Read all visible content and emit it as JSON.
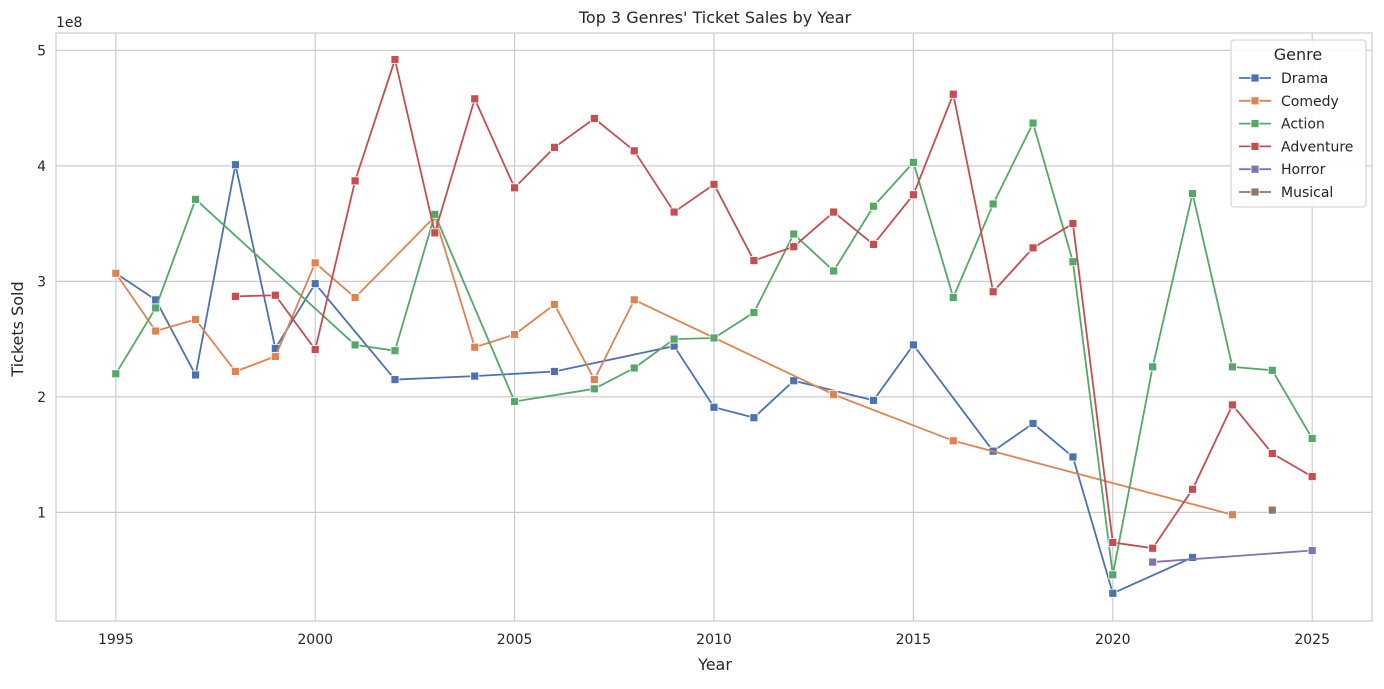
{
  "chart_data": {
    "type": "line",
    "title": "Top 3 Genres' Ticket Sales by Year",
    "xlabel": "Year",
    "ylabel": "Tickets Sold",
    "y_offset_label": "1e8",
    "xlim": [
      1993.5,
      2026.5
    ],
    "ylim": [
      6000000,
      515000000
    ],
    "x_ticks": [
      1995,
      2000,
      2005,
      2010,
      2015,
      2020,
      2025
    ],
    "y_ticks": [
      {
        "value": 100000000,
        "label": "1"
      },
      {
        "value": 200000000,
        "label": "2"
      },
      {
        "value": 300000000,
        "label": "3"
      },
      {
        "value": 400000000,
        "label": "4"
      },
      {
        "value": 500000000,
        "label": "5"
      }
    ],
    "grid": true,
    "legend_title": "Genre",
    "legend_position": "top-right",
    "series": [
      {
        "name": "Drama",
        "color": "#4c72b0",
        "points": [
          [
            1995,
            307000000
          ],
          [
            1996,
            284000000
          ],
          [
            1997,
            219000000
          ],
          [
            1998,
            401000000
          ],
          [
            1999,
            242000000
          ],
          [
            2000,
            298000000
          ],
          [
            2002,
            215000000
          ],
          [
            2004,
            218000000
          ],
          [
            2006,
            222000000
          ],
          [
            2009,
            244000000
          ],
          [
            2010,
            191000000
          ],
          [
            2011,
            182000000
          ],
          [
            2012,
            214000000
          ],
          [
            2014,
            197000000
          ],
          [
            2015,
            245000000
          ],
          [
            2017,
            153000000
          ],
          [
            2018,
            177000000
          ],
          [
            2019,
            148000000
          ],
          [
            2020,
            30000000
          ],
          [
            2022,
            61000000
          ]
        ]
      },
      {
        "name": "Comedy",
        "color": "#dd8452",
        "points": [
          [
            1995,
            307000000
          ],
          [
            1996,
            257000000
          ],
          [
            1997,
            267000000
          ],
          [
            1998,
            222000000
          ],
          [
            1999,
            235000000
          ],
          [
            2000,
            316000000
          ],
          [
            2001,
            286000000
          ],
          [
            2003,
            356000000
          ],
          [
            2004,
            243000000
          ],
          [
            2005,
            254000000
          ],
          [
            2006,
            280000000
          ],
          [
            2007,
            215000000
          ],
          [
            2008,
            284000000
          ],
          [
            2013,
            202000000
          ],
          [
            2016,
            162000000
          ],
          [
            2023,
            98000000
          ]
        ]
      },
      {
        "name": "Action",
        "color": "#55a868",
        "points": [
          [
            1995,
            220000000
          ],
          [
            1996,
            277000000
          ],
          [
            1997,
            371000000
          ],
          [
            2001,
            245000000
          ],
          [
            2002,
            240000000
          ],
          [
            2003,
            358000000
          ],
          [
            2005,
            196000000
          ],
          [
            2007,
            207000000
          ],
          [
            2008,
            225000000
          ],
          [
            2009,
            250000000
          ],
          [
            2010,
            251000000
          ],
          [
            2011,
            273000000
          ],
          [
            2012,
            341000000
          ],
          [
            2013,
            309000000
          ],
          [
            2014,
            365000000
          ],
          [
            2015,
            403000000
          ],
          [
            2016,
            286000000
          ],
          [
            2017,
            367000000
          ],
          [
            2018,
            437000000
          ],
          [
            2019,
            317000000
          ],
          [
            2020,
            46000000
          ],
          [
            2021,
            226000000
          ],
          [
            2022,
            376000000
          ],
          [
            2023,
            226000000
          ],
          [
            2024,
            223000000
          ],
          [
            2025,
            164000000
          ]
        ]
      },
      {
        "name": "Adventure",
        "color": "#c44e52",
        "points": [
          [
            1998,
            287000000
          ],
          [
            1999,
            288000000
          ],
          [
            2000,
            241000000
          ],
          [
            2001,
            387000000
          ],
          [
            2002,
            492000000
          ],
          [
            2003,
            342000000
          ],
          [
            2004,
            458000000
          ],
          [
            2005,
            381000000
          ],
          [
            2006,
            416000000
          ],
          [
            2007,
            441000000
          ],
          [
            2008,
            413000000
          ],
          [
            2009,
            360000000
          ],
          [
            2010,
            384000000
          ],
          [
            2011,
            318000000
          ],
          [
            2012,
            330000000
          ],
          [
            2013,
            360000000
          ],
          [
            2014,
            332000000
          ],
          [
            2015,
            375000000
          ],
          [
            2016,
            462000000
          ],
          [
            2017,
            291000000
          ],
          [
            2018,
            329000000
          ],
          [
            2019,
            350000000
          ],
          [
            2020,
            74000000
          ],
          [
            2021,
            69000000
          ],
          [
            2022,
            120000000
          ],
          [
            2023,
            193000000
          ],
          [
            2024,
            151000000
          ],
          [
            2025,
            131000000
          ]
        ]
      },
      {
        "name": "Horror",
        "color": "#8172b3",
        "points": [
          [
            2021,
            57000000
          ],
          [
            2025,
            67000000
          ]
        ]
      },
      {
        "name": "Musical",
        "color": "#937860",
        "points": [
          [
            2024,
            102000000
          ]
        ]
      }
    ]
  }
}
